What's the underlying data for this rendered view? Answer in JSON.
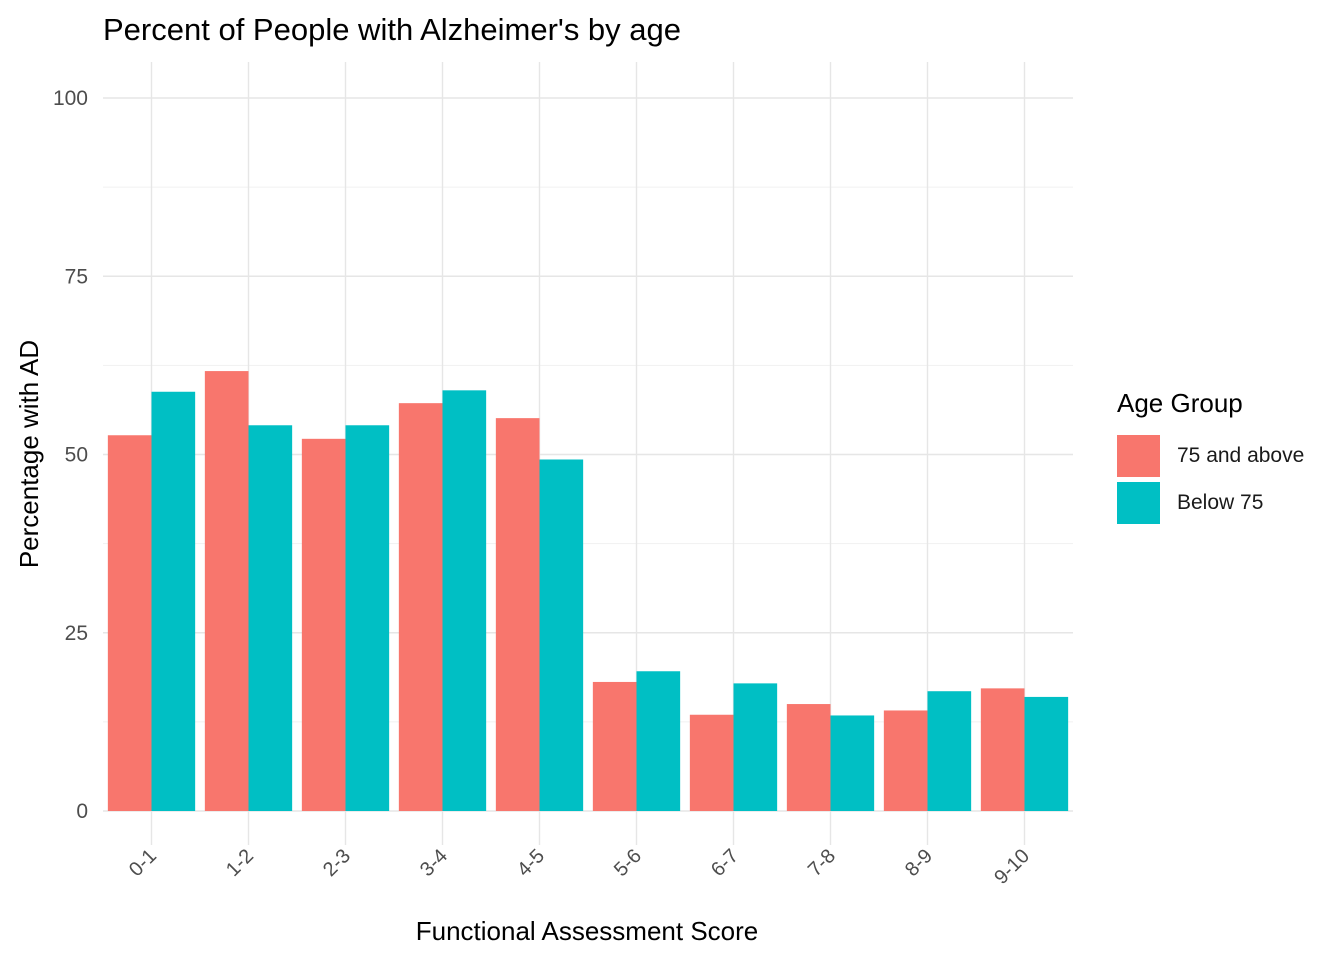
{
  "chart_data": {
    "type": "bar",
    "title": "Percent of People with Alzheimer's by age",
    "xlabel": "Functional Assessment Score",
    "ylabel": "Percentage with AD",
    "categories": [
      "0-1",
      "1-2",
      "2-3",
      "3-4",
      "4-5",
      "5-6",
      "6-7",
      "7-8",
      "8-9",
      "9-10"
    ],
    "series": [
      {
        "name": "75 and above",
        "color": "#F8766D",
        "values": [
          52.7,
          61.7,
          52.2,
          57.2,
          55.1,
          18.1,
          13.5,
          15.0,
          14.1,
          17.2
        ]
      },
      {
        "name": "Below 75",
        "color": "#00BFC4",
        "values": [
          58.8,
          54.1,
          54.1,
          59.0,
          49.3,
          19.6,
          17.9,
          13.4,
          16.8,
          16.0
        ]
      }
    ],
    "yticks": [
      0,
      25,
      50,
      75,
      100
    ],
    "ylim": [
      -4,
      104
    ],
    "grid": true,
    "legend": {
      "title": "Age Group",
      "position": "right"
    }
  }
}
